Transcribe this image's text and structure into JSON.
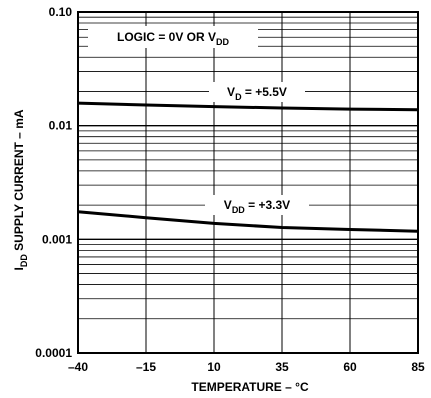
{
  "chart_data": {
    "type": "line",
    "xlabel": "TEMPERATURE – °C",
    "ylabel": "I",
    "ylabel_sub": "DD",
    "ylabel_rest": " SUPPLY CURRENT – mA",
    "x_ticks": [
      -40,
      -15,
      10,
      35,
      60,
      85
    ],
    "x_tick_labels": [
      "–40",
      "–15",
      "10",
      "35",
      "60",
      "85"
    ],
    "xlim": [
      -40,
      85
    ],
    "y_scale": "log",
    "ylim": [
      0.0001,
      0.1
    ],
    "y_ticks": [
      0.0001,
      0.001,
      0.01,
      0.1
    ],
    "y_tick_labels": [
      "0.0001",
      "0.001",
      "0.01",
      "0.10"
    ],
    "grid": true,
    "series": [
      {
        "label_main": "V",
        "label_sub": "D",
        "label_rest": " = +5.5V",
        "x": [
          -40,
          -15,
          10,
          35,
          60,
          85
        ],
        "y": [
          0.0158,
          0.0152,
          0.0147,
          0.0143,
          0.014,
          0.0138
        ]
      },
      {
        "label_main": "V",
        "label_sub": "DD",
        "label_rest": " = +3.3V",
        "x": [
          -40,
          -15,
          10,
          35,
          60,
          85
        ],
        "y": [
          0.00175,
          0.00155,
          0.00138,
          0.00127,
          0.00122,
          0.00118
        ]
      }
    ],
    "annotation": {
      "main": "LOGIC = 0V OR V",
      "sub": "DD"
    }
  }
}
